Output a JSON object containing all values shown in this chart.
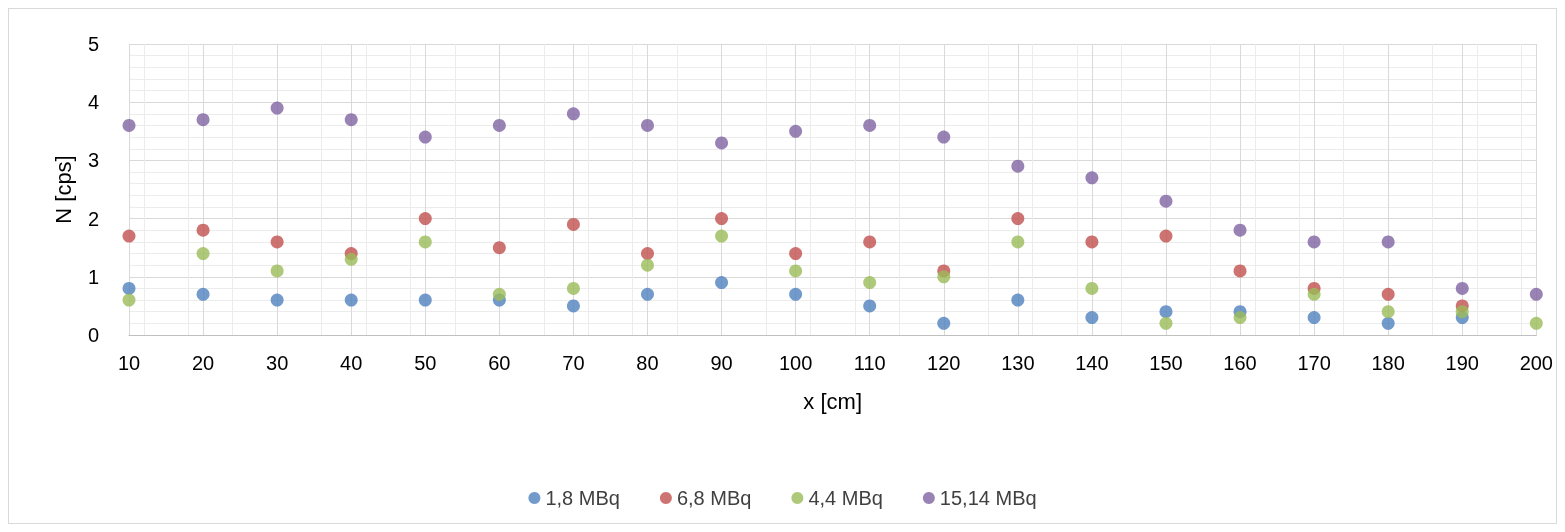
{
  "chart_data": {
    "type": "scatter",
    "xlabel": "x [cm]",
    "ylabel": "N [cps]",
    "xlim": [
      10,
      200
    ],
    "xticks": [
      10,
      20,
      30,
      40,
      50,
      60,
      70,
      80,
      90,
      100,
      110,
      120,
      130,
      140,
      150,
      160,
      170,
      180,
      190,
      200
    ],
    "ylim": [
      0,
      5
    ],
    "yticks": [
      0,
      1,
      2,
      3,
      4,
      5
    ],
    "grid": true,
    "legend": "bottom",
    "marker": "circle",
    "x": [
      10,
      20,
      30,
      40,
      50,
      60,
      70,
      80,
      90,
      100,
      110,
      120,
      130,
      140,
      150,
      160,
      170,
      180,
      190,
      200
    ],
    "series": [
      {
        "name": "1,8 MBq",
        "color": "#4f81bd",
        "values": [
          0.8,
          0.7,
          0.6,
          0.6,
          0.6,
          0.6,
          0.5,
          0.7,
          0.9,
          0.7,
          0.5,
          0.2,
          0.6,
          0.3,
          0.4,
          0.4,
          0.3,
          0.2,
          0.3,
          null
        ]
      },
      {
        "name": "6,8 MBq",
        "color": "#c0504d",
        "values": [
          1.7,
          1.8,
          1.6,
          1.4,
          2.0,
          1.5,
          1.9,
          1.4,
          2.0,
          1.4,
          1.6,
          1.1,
          2.0,
          1.6,
          1.7,
          1.1,
          0.8,
          0.7,
          0.5,
          null
        ]
      },
      {
        "name": "4,4 MBq",
        "color": "#9bbb59",
        "values": [
          0.6,
          1.4,
          1.1,
          1.3,
          1.6,
          0.7,
          0.8,
          1.2,
          1.7,
          1.1,
          0.9,
          1.0,
          1.6,
          0.8,
          0.2,
          0.3,
          0.7,
          0.4,
          0.4,
          0.2
        ]
      },
      {
        "name": "15,14 MBq",
        "color": "#8064a2",
        "values": [
          3.6,
          3.7,
          3.9,
          3.7,
          3.4,
          3.6,
          3.8,
          3.6,
          3.3,
          3.5,
          3.6,
          3.4,
          2.9,
          2.7,
          2.3,
          1.8,
          1.6,
          1.6,
          0.8,
          0.7
        ]
      }
    ]
  }
}
